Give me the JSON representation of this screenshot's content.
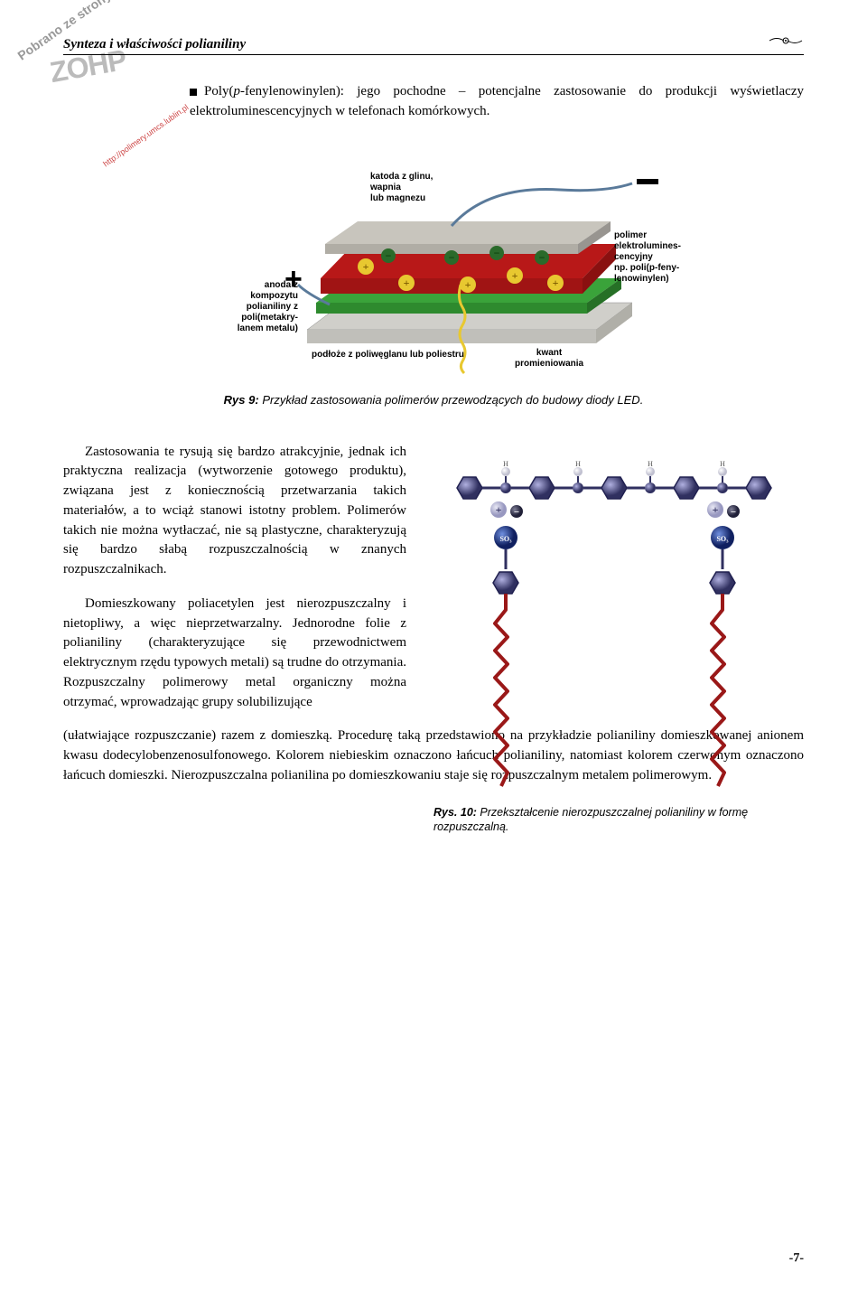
{
  "header": {
    "title": "Synteza i właściwości polianiliny"
  },
  "watermark": {
    "rotated": "Pobrano ze strony",
    "logo": "ZOHP",
    "url": "http://polimery.umcs.lublin.pl"
  },
  "intro": {
    "prefix": "Poly(",
    "ital": "p",
    "text": "-fenylenowinylen): jego pochodne – potencjalne zastosowanie do produkcji wyświetlaczy elektroluminescencyjnych w telefonach komórkowych."
  },
  "figure1": {
    "labels": {
      "cathode": "katoda z glinu,\nwapnia\nlub magnezu",
      "anode": "anoda z\nkompozytu\npolianiliny z\npoli(metakry-\nlanem metalu)",
      "polymer": "polimer\nelektrolumines-\ncencyjny\nnp. poli(p-feny-\nlenowinylen)",
      "substrate": "podłoże z poliwęglanu lub poliestru",
      "quantum": "kwant\npromieniowania",
      "plus": "+",
      "minus": "−"
    },
    "colors": {
      "cathode_layer": "#b8b5ad",
      "red_layer": "#b81818",
      "green_layer": "#3aa33a",
      "substrate_layer": "#d0cfca",
      "pos_charge": "#e8c830",
      "neg_charge": "#2a6a2a",
      "wire": "#5a7a9a",
      "photon": "#e8c830"
    },
    "caption_bold": "Rys 9:",
    "caption_text": " Przykład zastosowania polimerów przewodzących do budowy diody LED."
  },
  "body": {
    "p1": "Zastosowania te rysują się bardzo atrakcyjnie, jednak ich praktyczna realizacja (wytworzenie gotowego produktu), związana jest z koniecznością przetwarzania takich materiałów, a to wciąż stanowi istotny problem. Polimerów takich nie można wytłaczać, nie są plastyczne, charakteryzują się bardzo słabą rozpuszczalnością w znanych rozpuszczalnikach.",
    "p2": "Domieszkowany poliacetylen jest nierozpuszczalny i nietopliwy, a więc nieprzetwarzalny. Jednorodne folie z polianiliny (charakteryzujące się przewodnictwem elektrycznym rzędu typowych metali) są trudne do otrzymania. Rozpuszczalny polimerowy metal organiczny można otrzymać, wprowadzając grupy solubilizujące",
    "p3": "(ułatwiające rozpuszczanie) razem z domieszką. Procedurę taką przedstawiono na przykładzie polianiliny domieszkowanej anionem kwasu dodecylobenzenosulfonowego. Kolorem niebieskim oznaczono łańcuch polianiliny, natomiast kolorem czerwonym oznaczono łańcuch domieszki. Nierozpuszczalna polianilina po domieszkowaniu staje się rozpuszczalnym metalem polimerowym."
  },
  "figure2": {
    "colors": {
      "ring": "#3a3a7a",
      "ring_highlight": "#9090c0",
      "red_chain": "#9a1818",
      "so3_ball": "#2040a0",
      "pos_ball": "#b8b8d8",
      "neg_ball": "#404060",
      "h_ball": "#e0e0e8"
    },
    "caption_bold": "Rys. 10:",
    "caption_text": " Przekształcenie nierozpuszczalnej polianiliny w formę rozpuszczalną."
  },
  "page_number": "-7-"
}
